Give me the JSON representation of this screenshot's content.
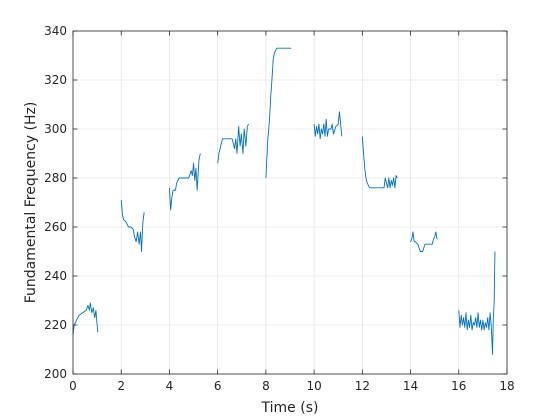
{
  "chart_data": {
    "type": "line",
    "title": "",
    "xlabel": "Time (s)",
    "ylabel": "Fundamental Frequency (Hz)",
    "xlim": [
      0,
      18
    ],
    "ylim": [
      200,
      340
    ],
    "xticks": [
      "0",
      "2",
      "4",
      "6",
      "8",
      "10",
      "12",
      "14",
      "16",
      "18"
    ],
    "yticks": [
      "200",
      "220",
      "240",
      "260",
      "280",
      "300",
      "320",
      "340"
    ],
    "grid": true,
    "box": true,
    "line_color": "#0072BD",
    "segments": [
      [
        [
          0.0,
          216
        ],
        [
          0.05,
          220
        ],
        [
          0.15,
          222
        ],
        [
          0.25,
          224
        ],
        [
          0.4,
          225
        ],
        [
          0.55,
          226
        ],
        [
          0.62,
          228
        ],
        [
          0.68,
          226
        ],
        [
          0.72,
          229
        ],
        [
          0.78,
          225
        ],
        [
          0.84,
          227
        ],
        [
          0.9,
          223
        ],
        [
          0.95,
          226
        ],
        [
          1.0,
          220
        ],
        [
          1.03,
          217
        ]
      ],
      [
        [
          2.0,
          271
        ],
        [
          2.05,
          265
        ],
        [
          2.1,
          263
        ],
        [
          2.2,
          262
        ],
        [
          2.3,
          260
        ],
        [
          2.4,
          260
        ],
        [
          2.5,
          259
        ],
        [
          2.55,
          256
        ],
        [
          2.62,
          254
        ],
        [
          2.68,
          258
        ],
        [
          2.74,
          253
        ],
        [
          2.8,
          258
        ],
        [
          2.84,
          250
        ],
        [
          2.9,
          262
        ],
        [
          2.95,
          266
        ]
      ],
      [
        [
          4.0,
          276
        ],
        [
          4.05,
          267
        ],
        [
          4.1,
          272
        ],
        [
          4.15,
          275
        ],
        [
          4.25,
          275
        ],
        [
          4.3,
          278
        ],
        [
          4.4,
          280
        ],
        [
          4.6,
          280
        ],
        [
          4.8,
          280
        ],
        [
          4.9,
          283
        ],
        [
          4.95,
          281
        ],
        [
          5.0,
          286
        ],
        [
          5.05,
          279
        ],
        [
          5.1,
          284
        ],
        [
          5.15,
          275
        ],
        [
          5.22,
          287
        ],
        [
          5.28,
          290
        ]
      ],
      [
        [
          6.0,
          286
        ],
        [
          6.05,
          290
        ],
        [
          6.1,
          292
        ],
        [
          6.2,
          296
        ],
        [
          6.4,
          296
        ],
        [
          6.6,
          296
        ],
        [
          6.7,
          292
        ],
        [
          6.75,
          296
        ],
        [
          6.8,
          290
        ],
        [
          6.87,
          301
        ],
        [
          6.93,
          293
        ],
        [
          6.98,
          298
        ],
        [
          7.05,
          290
        ],
        [
          7.1,
          300
        ],
        [
          7.17,
          293
        ],
        [
          7.23,
          301
        ],
        [
          7.28,
          302
        ]
      ],
      [
        [
          8.0,
          280
        ],
        [
          8.04,
          288
        ],
        [
          8.08,
          296
        ],
        [
          8.12,
          300
        ],
        [
          8.15,
          304
        ],
        [
          8.2,
          313
        ],
        [
          8.25,
          320
        ],
        [
          8.3,
          328
        ],
        [
          8.35,
          331
        ],
        [
          8.45,
          333
        ],
        [
          8.6,
          333
        ],
        [
          8.8,
          333
        ],
        [
          9.0,
          333
        ],
        [
          9.05,
          333
        ]
      ],
      [
        [
          10.0,
          302
        ],
        [
          10.05,
          297
        ],
        [
          10.1,
          301
        ],
        [
          10.15,
          298
        ],
        [
          10.2,
          302
        ],
        [
          10.25,
          296
        ],
        [
          10.3,
          300
        ],
        [
          10.35,
          298
        ],
        [
          10.4,
          302
        ],
        [
          10.45,
          297
        ],
        [
          10.5,
          304
        ],
        [
          10.55,
          297
        ],
        [
          10.6,
          300
        ],
        [
          10.7,
          300
        ],
        [
          10.75,
          302
        ],
        [
          10.8,
          298
        ],
        [
          10.9,
          301
        ],
        [
          11.0,
          302
        ],
        [
          11.05,
          307
        ],
        [
          11.1,
          302
        ],
        [
          11.15,
          297
        ]
      ],
      [
        [
          12.0,
          297
        ],
        [
          12.05,
          290
        ],
        [
          12.1,
          284
        ],
        [
          12.15,
          280
        ],
        [
          12.2,
          278
        ],
        [
          12.3,
          276
        ],
        [
          12.6,
          276
        ],
        [
          12.9,
          276
        ],
        [
          12.95,
          280
        ],
        [
          13.0,
          278
        ],
        [
          13.05,
          276
        ],
        [
          13.1,
          280
        ],
        [
          13.15,
          276
        ],
        [
          13.2,
          279
        ],
        [
          13.25,
          277
        ],
        [
          13.3,
          280
        ],
        [
          13.35,
          276
        ],
        [
          13.4,
          281
        ],
        [
          13.45,
          280
        ]
      ],
      [
        [
          14.0,
          254
        ],
        [
          14.05,
          255
        ],
        [
          14.1,
          258
        ],
        [
          14.15,
          254
        ],
        [
          14.2,
          254
        ],
        [
          14.3,
          253
        ],
        [
          14.4,
          250
        ],
        [
          14.5,
          250
        ],
        [
          14.6,
          253
        ],
        [
          14.7,
          253
        ],
        [
          14.8,
          253
        ],
        [
          14.9,
          253
        ],
        [
          14.95,
          255
        ],
        [
          15.0,
          256
        ],
        [
          15.05,
          258
        ],
        [
          15.1,
          255
        ]
      ],
      [
        [
          16.0,
          226
        ],
        [
          16.05,
          219
        ],
        [
          16.1,
          224
        ],
        [
          16.15,
          220
        ],
        [
          16.2,
          223
        ],
        [
          16.25,
          219
        ],
        [
          16.3,
          225
        ],
        [
          16.35,
          218
        ],
        [
          16.4,
          222
        ],
        [
          16.45,
          219
        ],
        [
          16.5,
          224
        ],
        [
          16.55,
          218
        ],
        [
          16.6,
          221
        ],
        [
          16.65,
          220
        ],
        [
          16.7,
          223
        ],
        [
          16.75,
          219
        ],
        [
          16.8,
          225
        ],
        [
          16.85,
          219
        ],
        [
          16.9,
          222
        ],
        [
          16.95,
          218
        ],
        [
          17.0,
          222
        ],
        [
          17.05,
          218
        ],
        [
          17.1,
          221
        ],
        [
          17.15,
          219
        ],
        [
          17.2,
          223
        ],
        [
          17.25,
          218
        ],
        [
          17.3,
          225
        ],
        [
          17.35,
          219
        ],
        [
          17.4,
          208
        ],
        [
          17.43,
          222
        ],
        [
          17.47,
          230
        ],
        [
          17.5,
          250
        ]
      ]
    ]
  }
}
